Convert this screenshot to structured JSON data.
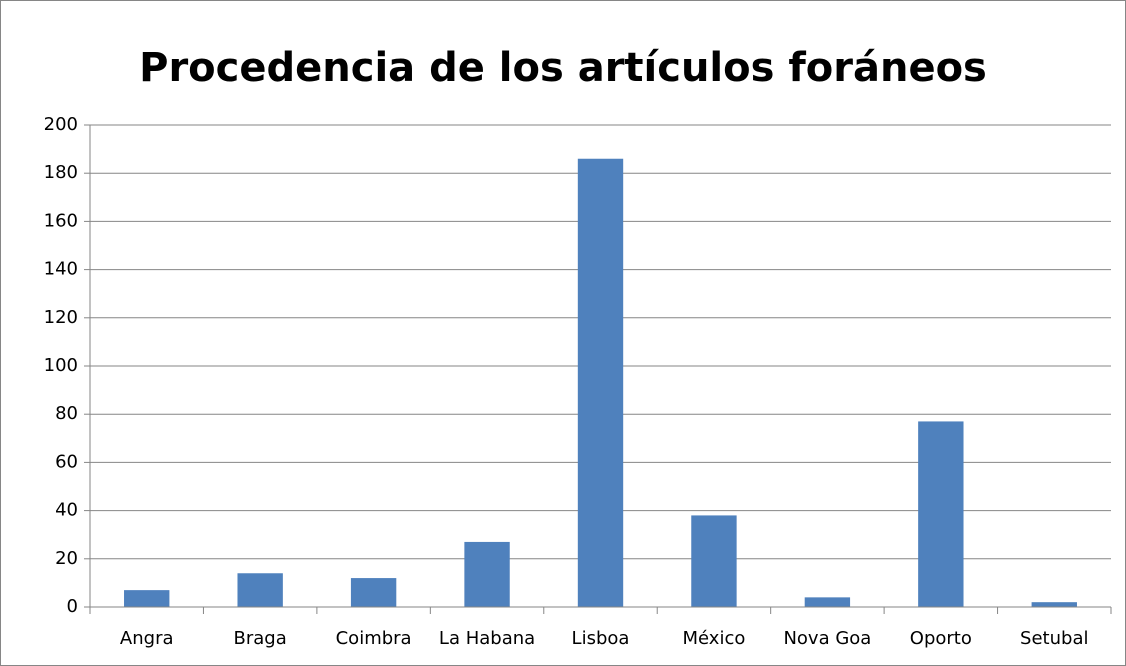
{
  "chart_data": {
    "type": "bar",
    "title": "Procedencia de los artículos foráneos",
    "categories": [
      "Angra",
      "Braga",
      "Coimbra",
      "La Habana",
      "Lisboa",
      "México",
      "Nova Goa",
      "Oporto",
      "Setubal"
    ],
    "values": [
      7,
      14,
      12,
      27,
      186,
      38,
      4,
      77,
      2
    ],
    "color": "#4f81bd",
    "ylim": [
      0,
      200
    ],
    "yticks": [
      0,
      20,
      40,
      60,
      80,
      100,
      120,
      140,
      160,
      180,
      200
    ],
    "grid": true
  }
}
